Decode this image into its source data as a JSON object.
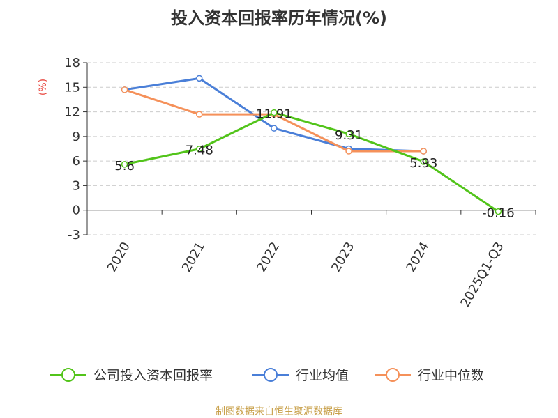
{
  "chart_data": {
    "type": "line",
    "title": "投入资本回报率历年情况(%)",
    "ylabel": "(%)",
    "xlabel": "",
    "categories": [
      "2020",
      "2021",
      "2022",
      "2023",
      "2024",
      "2025Q1-Q3"
    ],
    "y_ticks": [
      "-3",
      "0",
      "3",
      "6",
      "9",
      "12",
      "15",
      "18"
    ],
    "ylim": [
      -3,
      18
    ],
    "grid": true,
    "legend_position": "bottom",
    "series": [
      {
        "name": "公司投入资本回报率",
        "color": "#52c41a",
        "values": [
          5.6,
          7.48,
          11.91,
          9.31,
          5.93,
          -0.16
        ],
        "labels": [
          "5.6",
          "7.48",
          "11.91",
          "9.31",
          "5.93",
          "-0.16"
        ]
      },
      {
        "name": "行业均值",
        "color": "#4a7fd8",
        "values": [
          14.7,
          16.1,
          10.0,
          7.5,
          7.2,
          null
        ],
        "labels": []
      },
      {
        "name": "行业中位数",
        "color": "#f5915a",
        "values": [
          14.7,
          11.7,
          11.7,
          7.2,
          7.2,
          null
        ],
        "labels": []
      }
    ]
  },
  "source": "制图数据来自恒生聚源数据库",
  "colors": {
    "unit_label": "#e8433b",
    "source_text": "#c8a04a",
    "axis": "#333333",
    "grid": "#cccccc"
  }
}
